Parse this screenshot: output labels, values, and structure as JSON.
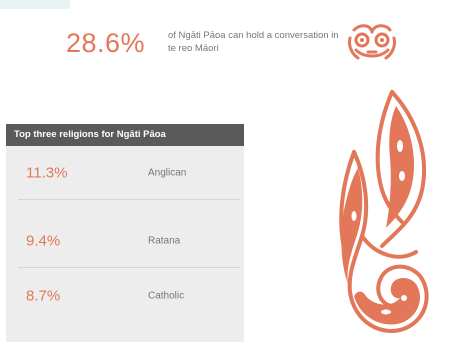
{
  "stat": {
    "value": "28.6%",
    "text": "of Ngāti Pāoa can hold a conversation in te reo Māori"
  },
  "religions": {
    "title": "Top three religions for Ngāti Pāoa",
    "rows": [
      {
        "percent": "11.3%",
        "name": "Anglican"
      },
      {
        "percent": "9.4%",
        "name": "Ratana"
      },
      {
        "percent": "8.7%",
        "name": "Catholic"
      }
    ]
  },
  "colors": {
    "accent": "#e2775a",
    "header_bg": "#5a5a5a",
    "panel_bg": "#ededed"
  },
  "icons": [
    "tiki-icon",
    "koru-carving-illustration"
  ]
}
